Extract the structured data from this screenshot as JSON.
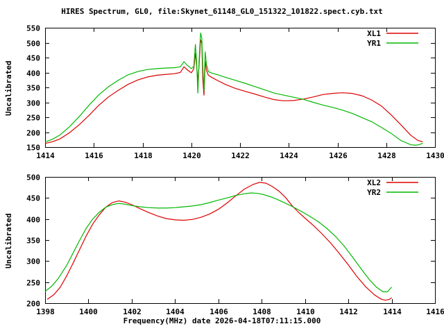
{
  "page": {
    "title": "HIRES Spectrum, GL0, file:Skynet_61148_GL0_151322_101822.spect.cyb.txt",
    "xlabel": "Frequency(MHz) date 2026-04-18T07:11:15.000",
    "background": "#ffffff",
    "axis_color": "#000000"
  },
  "chart_data": [
    {
      "type": "line",
      "ylabel": "Uncalibrated",
      "xlim": [
        1414,
        1430
      ],
      "ylim": [
        150,
        550
      ],
      "xticks": [
        1414,
        1416,
        1418,
        1420,
        1422,
        1424,
        1426,
        1428,
        1430
      ],
      "yticks": [
        150,
        200,
        250,
        300,
        350,
        400,
        450,
        500,
        550
      ],
      "grid": false,
      "legend_position": "top-right-inside",
      "series": [
        {
          "name": "XL1",
          "color": "#dd0000",
          "points": [
            [
              1414.0,
              162
            ],
            [
              1414.3,
              168
            ],
            [
              1414.6,
              177
            ],
            [
              1415.0,
              198
            ],
            [
              1415.4,
              225
            ],
            [
              1415.8,
              256
            ],
            [
              1416.2,
              290
            ],
            [
              1416.6,
              318
            ],
            [
              1417.0,
              340
            ],
            [
              1417.4,
              360
            ],
            [
              1417.8,
              375
            ],
            [
              1418.2,
              385
            ],
            [
              1418.6,
              391
            ],
            [
              1419.0,
              394
            ],
            [
              1419.3,
              396
            ],
            [
              1419.55,
              400
            ],
            [
              1419.7,
              419
            ],
            [
              1419.85,
              408
            ],
            [
              1420.0,
              399
            ],
            [
              1420.1,
              412
            ],
            [
              1420.17,
              465
            ],
            [
              1420.22,
              420
            ],
            [
              1420.27,
              372
            ],
            [
              1420.32,
              425
            ],
            [
              1420.38,
              510
            ],
            [
              1420.43,
              497
            ],
            [
              1420.47,
              378
            ],
            [
              1420.52,
              323
            ],
            [
              1420.57,
              438
            ],
            [
              1420.62,
              408
            ],
            [
              1420.7,
              391
            ],
            [
              1420.85,
              383
            ],
            [
              1421.1,
              372
            ],
            [
              1421.4,
              360
            ],
            [
              1421.8,
              347
            ],
            [
              1422.2,
              337
            ],
            [
              1422.6,
              328
            ],
            [
              1423.0,
              318
            ],
            [
              1423.4,
              309
            ],
            [
              1423.8,
              305
            ],
            [
              1424.2,
              306
            ],
            [
              1424.6,
              311
            ],
            [
              1425.0,
              318
            ],
            [
              1425.4,
              326
            ],
            [
              1425.8,
              330
            ],
            [
              1426.2,
              332
            ],
            [
              1426.6,
              330
            ],
            [
              1427.0,
              322
            ],
            [
              1427.4,
              308
            ],
            [
              1427.8,
              288
            ],
            [
              1428.2,
              258
            ],
            [
              1428.6,
              225
            ],
            [
              1429.0,
              190
            ],
            [
              1429.3,
              172
            ],
            [
              1429.5,
              168
            ]
          ]
        },
        {
          "name": "YR1",
          "color": "#00b800",
          "points": [
            [
              1414.0,
              167
            ],
            [
              1414.3,
              176
            ],
            [
              1414.6,
              190
            ],
            [
              1415.0,
              218
            ],
            [
              1415.4,
              252
            ],
            [
              1415.8,
              290
            ],
            [
              1416.2,
              325
            ],
            [
              1416.6,
              352
            ],
            [
              1417.0,
              374
            ],
            [
              1417.4,
              392
            ],
            [
              1417.8,
              403
            ],
            [
              1418.2,
              410
            ],
            [
              1418.6,
              413
            ],
            [
              1419.0,
              415
            ],
            [
              1419.3,
              416
            ],
            [
              1419.55,
              419
            ],
            [
              1419.7,
              436
            ],
            [
              1419.85,
              423
            ],
            [
              1420.0,
              413
            ],
            [
              1420.1,
              420
            ],
            [
              1420.17,
              495
            ],
            [
              1420.22,
              430
            ],
            [
              1420.27,
              330
            ],
            [
              1420.32,
              440
            ],
            [
              1420.38,
              533
            ],
            [
              1420.43,
              515
            ],
            [
              1420.47,
              420
            ],
            [
              1420.52,
              338
            ],
            [
              1420.57,
              470
            ],
            [
              1420.62,
              428
            ],
            [
              1420.7,
              403
            ],
            [
              1420.85,
              398
            ],
            [
              1421.1,
              392
            ],
            [
              1421.4,
              384
            ],
            [
              1421.8,
              374
            ],
            [
              1422.2,
              364
            ],
            [
              1422.6,
              353
            ],
            [
              1423.0,
              342
            ],
            [
              1423.4,
              331
            ],
            [
              1423.8,
              324
            ],
            [
              1424.2,
              317
            ],
            [
              1424.6,
              310
            ],
            [
              1425.0,
              300
            ],
            [
              1425.4,
              291
            ],
            [
              1425.8,
              283
            ],
            [
              1426.2,
              274
            ],
            [
              1426.6,
              263
            ],
            [
              1427.0,
              249
            ],
            [
              1427.4,
              235
            ],
            [
              1427.8,
              216
            ],
            [
              1428.2,
              196
            ],
            [
              1428.6,
              172
            ],
            [
              1429.0,
              158
            ],
            [
              1429.2,
              156
            ],
            [
              1429.35,
              158
            ],
            [
              1429.5,
              163
            ]
          ]
        }
      ]
    },
    {
      "type": "line",
      "ylabel": "Uncalibrated",
      "xlim": [
        1398,
        1416
      ],
      "ylim": [
        200,
        500
      ],
      "xticks": [
        1398,
        1400,
        1402,
        1404,
        1406,
        1408,
        1410,
        1412,
        1414,
        1416
      ],
      "yticks": [
        200,
        250,
        300,
        350,
        400,
        450,
        500
      ],
      "grid": false,
      "legend_position": "top-right-inside",
      "series": [
        {
          "name": "XL2",
          "color": "#dd0000",
          "points": [
            [
              1398.1,
              209
            ],
            [
              1398.4,
              220
            ],
            [
              1398.7,
              238
            ],
            [
              1399.0,
              265
            ],
            [
              1399.3,
              296
            ],
            [
              1399.6,
              328
            ],
            [
              1399.9,
              360
            ],
            [
              1400.2,
              388
            ],
            [
              1400.5,
              410
            ],
            [
              1400.8,
              428
            ],
            [
              1401.1,
              439
            ],
            [
              1401.4,
              443
            ],
            [
              1401.7,
              440
            ],
            [
              1402.0,
              434
            ],
            [
              1402.4,
              424
            ],
            [
              1402.8,
              415
            ],
            [
              1403.2,
              407
            ],
            [
              1403.6,
              401
            ],
            [
              1404.0,
              398
            ],
            [
              1404.4,
              397
            ],
            [
              1404.8,
              399
            ],
            [
              1405.2,
              404
            ],
            [
              1405.6,
              412
            ],
            [
              1406.0,
              423
            ],
            [
              1406.4,
              438
            ],
            [
              1406.8,
              455
            ],
            [
              1407.2,
              471
            ],
            [
              1407.6,
              482
            ],
            [
              1407.9,
              487
            ],
            [
              1408.2,
              485
            ],
            [
              1408.5,
              477
            ],
            [
              1408.8,
              466
            ],
            [
              1409.1,
              451
            ],
            [
              1409.4,
              432
            ],
            [
              1409.7,
              416
            ],
            [
              1410.0,
              402
            ],
            [
              1410.4,
              384
            ],
            [
              1410.8,
              364
            ],
            [
              1411.2,
              342
            ],
            [
              1411.6,
              317
            ],
            [
              1412.0,
              291
            ],
            [
              1412.4,
              263
            ],
            [
              1412.8,
              239
            ],
            [
              1413.2,
              220
            ],
            [
              1413.5,
              210
            ],
            [
              1413.7,
              207
            ],
            [
              1413.9,
              209
            ],
            [
              1414.0,
              213
            ]
          ]
        },
        {
          "name": "YR2",
          "color": "#00b800",
          "points": [
            [
              1398.0,
              228
            ],
            [
              1398.3,
              240
            ],
            [
              1398.6,
              258
            ],
            [
              1399.0,
              290
            ],
            [
              1399.3,
              320
            ],
            [
              1399.6,
              350
            ],
            [
              1399.9,
              378
            ],
            [
              1400.2,
              400
            ],
            [
              1400.5,
              416
            ],
            [
              1400.8,
              428
            ],
            [
              1401.1,
              434
            ],
            [
              1401.4,
              437
            ],
            [
              1401.7,
              435
            ],
            [
              1402.0,
              432
            ],
            [
              1402.4,
              429
            ],
            [
              1402.8,
              427
            ],
            [
              1403.2,
              426
            ],
            [
              1403.6,
              426
            ],
            [
              1404.0,
              427
            ],
            [
              1404.4,
              429
            ],
            [
              1404.8,
              431
            ],
            [
              1405.2,
              434
            ],
            [
              1405.6,
              439
            ],
            [
              1406.0,
              445
            ],
            [
              1406.4,
              450
            ],
            [
              1406.8,
              456
            ],
            [
              1407.2,
              460
            ],
            [
              1407.5,
              462
            ],
            [
              1407.8,
              461
            ],
            [
              1408.1,
              458
            ],
            [
              1408.4,
              453
            ],
            [
              1408.7,
              447
            ],
            [
              1409.0,
              440
            ],
            [
              1409.4,
              430
            ],
            [
              1409.8,
              419
            ],
            [
              1410.2,
              407
            ],
            [
              1410.6,
              394
            ],
            [
              1411.0,
              378
            ],
            [
              1411.4,
              359
            ],
            [
              1411.8,
              336
            ],
            [
              1412.2,
              309
            ],
            [
              1412.6,
              281
            ],
            [
              1413.0,
              254
            ],
            [
              1413.3,
              238
            ],
            [
              1413.6,
              227
            ],
            [
              1413.8,
              227
            ],
            [
              1414.0,
              238
            ]
          ]
        }
      ]
    }
  ]
}
